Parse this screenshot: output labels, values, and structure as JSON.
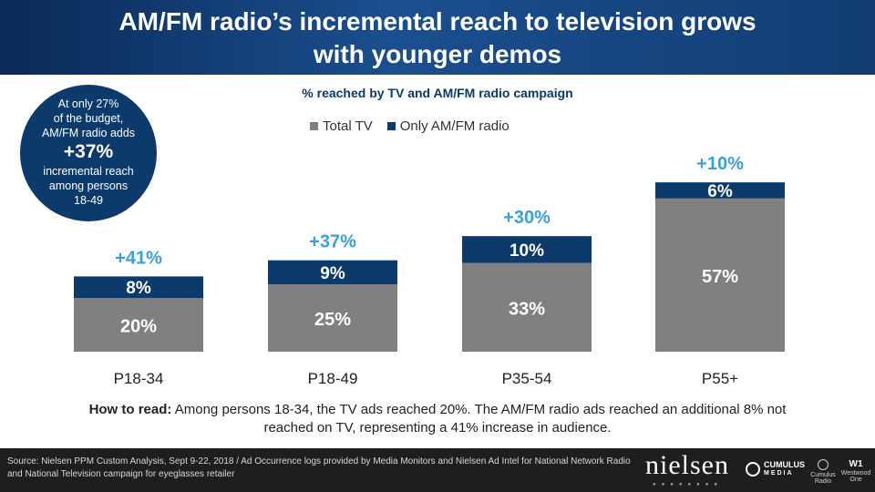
{
  "header": {
    "title_line1": "AM/FM radio’s incremental reach to television grows",
    "title_line2": "with younger demos"
  },
  "callout": {
    "line1": "At only 27%",
    "line2": "of the budget,",
    "line3": "AM/FM radio adds",
    "big": "+37%",
    "line4": "incremental reach",
    "line5": "among persons",
    "line6": "18-49"
  },
  "how_to_read": {
    "label": "How to read:",
    "text": " Among persons 18-34, the TV ads reached 20%. The AM/FM radio ads reached an additional 8% not reached on TV, representing a 41% increase in audience."
  },
  "footer": {
    "source": "Source: Nielsen PPM Custom Analysis, Sept 9-22, 2018 / Ad Occurrence logs provided by Media Monitors and Nielsen Ad Intel for National Network Radio and National Television campaign for eyeglasses retailer",
    "logo_nielsen": "nielsen",
    "logo_cumulus": "CUMULUS",
    "logo_cumulus_sub": "MEDIA",
    "logo_small1": "Cumulus Radio",
    "logo_small2": "Westwood One"
  },
  "colors": {
    "total_tv": "#808080",
    "only_radio": "#0c3a6b",
    "incremental_label": "#3aa0d8",
    "header": "#123c72"
  },
  "chart_data": {
    "type": "bar",
    "stacked": true,
    "title": "% reached by TV and AM/FM radio campaign",
    "categories": [
      "P18-34",
      "P18-49",
      "P35-54",
      "P55+"
    ],
    "series": [
      {
        "name": "Total TV",
        "values": [
          20,
          25,
          33,
          57
        ],
        "labels": [
          "20%",
          "25%",
          "33%",
          "57%"
        ]
      },
      {
        "name": "Only AM/FM radio",
        "values": [
          8,
          9,
          10,
          6
        ],
        "labels": [
          "8%",
          "9%",
          "10%",
          "6%"
        ]
      }
    ],
    "incremental_labels": [
      "+41%",
      "+37%",
      "+30%",
      "+10%"
    ],
    "ylim": [
      0,
      70
    ],
    "legend_position": "top",
    "grid": false
  }
}
